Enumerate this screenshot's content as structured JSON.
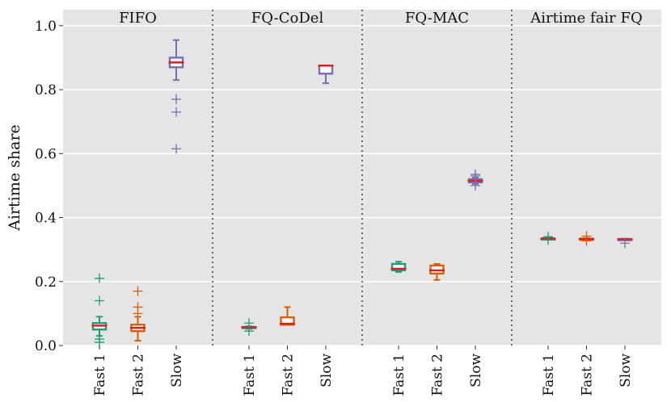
{
  "chart_data": {
    "type": "box",
    "ylabel": "Airtime share",
    "ylim": [
      0.0,
      1.05
    ],
    "yticks": [
      0.0,
      0.2,
      0.4,
      0.6,
      0.8,
      1.0
    ],
    "ytick_labels": [
      "0.0",
      "0.2",
      "0.4",
      "0.6",
      "0.8",
      "1.0"
    ],
    "grid": true,
    "categories": [
      "Fast 1",
      "Fast 2",
      "Slow"
    ],
    "colors": {
      "Fast 1": "#1b9e77",
      "Fast 2": "#d95f02",
      "Slow": "#7570b3",
      "median": "#e41a1c",
      "background": "#e5e5e5",
      "grid": "#ffffff"
    },
    "panels": [
      {
        "title": "FIFO",
        "boxes": [
          {
            "category": "Fast 1",
            "whisker_low": 0.03,
            "q1": 0.05,
            "median": 0.062,
            "q3": 0.07,
            "whisker_high": 0.09,
            "outliers": [
              0.21,
              0.14,
              0.02,
              0.01
            ]
          },
          {
            "category": "Fast 2",
            "whisker_low": 0.015,
            "q1": 0.045,
            "median": 0.055,
            "q3": 0.065,
            "whisker_high": 0.09,
            "outliers": [
              0.17,
              0.12,
              0.1
            ]
          },
          {
            "category": "Slow",
            "whisker_low": 0.83,
            "q1": 0.87,
            "median": 0.885,
            "q3": 0.9,
            "whisker_high": 0.955,
            "outliers": [
              0.77,
              0.73,
              0.615
            ]
          }
        ]
      },
      {
        "title": "FQ-CoDel",
        "boxes": [
          {
            "category": "Fast 1",
            "whisker_low": 0.052,
            "q1": 0.055,
            "median": 0.057,
            "q3": 0.058,
            "whisker_high": 0.06,
            "outliers": [
              0.07,
              0.045
            ]
          },
          {
            "category": "Fast 2",
            "whisker_low": 0.065,
            "q1": 0.065,
            "median": 0.068,
            "q3": 0.088,
            "whisker_high": 0.12,
            "outliers": []
          },
          {
            "category": "Slow",
            "whisker_low": 0.82,
            "q1": 0.85,
            "median": 0.875,
            "q3": 0.875,
            "whisker_high": 0.875,
            "outliers": []
          }
        ]
      },
      {
        "title": "FQ-MAC",
        "boxes": [
          {
            "category": "Fast 1",
            "whisker_low": 0.23,
            "q1": 0.235,
            "median": 0.24,
            "q3": 0.255,
            "whisker_high": 0.262,
            "outliers": []
          },
          {
            "category": "Fast 2",
            "whisker_low": 0.205,
            "q1": 0.225,
            "median": 0.235,
            "q3": 0.25,
            "whisker_high": 0.255,
            "outliers": []
          },
          {
            "category": "Slow",
            "whisker_low": 0.505,
            "q1": 0.51,
            "median": 0.515,
            "q3": 0.52,
            "whisker_high": 0.525,
            "outliers": [
              0.535,
              0.53,
              0.5
            ]
          }
        ]
      },
      {
        "title": "Airtime fair FQ",
        "boxes": [
          {
            "category": "Fast 1",
            "whisker_low": 0.332,
            "q1": 0.333,
            "median": 0.334,
            "q3": 0.335,
            "whisker_high": 0.336,
            "outliers": [
              0.34,
              0.33
            ]
          },
          {
            "category": "Fast 2",
            "whisker_low": 0.331,
            "q1": 0.332,
            "median": 0.333,
            "q3": 0.334,
            "whisker_high": 0.336,
            "outliers": [
              0.342,
              0.327
            ]
          },
          {
            "category": "Slow",
            "whisker_low": 0.33,
            "q1": 0.331,
            "median": 0.332,
            "q3": 0.333,
            "whisker_high": 0.334,
            "outliers": [
              0.32
            ]
          }
        ]
      }
    ]
  }
}
